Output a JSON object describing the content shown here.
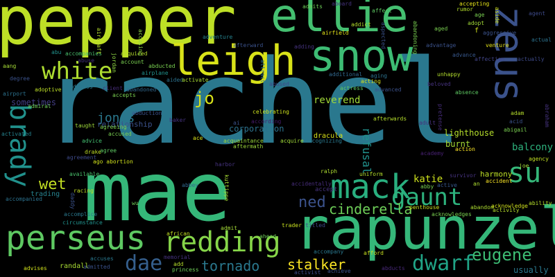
{
  "words": [
    {
      "text": "rachel",
      "color": "#2a788e"
    },
    {
      "text": "mae",
      "color": "#35b779"
    },
    {
      "text": "pepper",
      "color": "#bddf26"
    },
    {
      "text": "rapunzel",
      "color": "#35b779"
    },
    {
      "text": "ellie",
      "color": "#44bf70"
    },
    {
      "text": "snow",
      "color": "#3dbc74"
    },
    {
      "text": "zeus",
      "color": "#3b528b"
    },
    {
      "text": "leigh",
      "color": "#d8e219"
    },
    {
      "text": "mack",
      "color": "#29af7f"
    },
    {
      "text": "perseus",
      "color": "#5ec962"
    },
    {
      "text": "redding",
      "color": "#86d549"
    },
    {
      "text": "brady",
      "color": "#21918c"
    },
    {
      "text": "gaunt",
      "color": "#2db27d"
    },
    {
      "text": "white",
      "color": "#addc30"
    },
    {
      "text": "su",
      "color": "#35b779"
    },
    {
      "text": "eugene",
      "color": "#3dbc74"
    },
    {
      "text": "dwarf",
      "color": "#20a486"
    },
    {
      "text": "dae",
      "color": "#355f8d"
    },
    {
      "text": "tornado",
      "color": "#2a788e"
    },
    {
      "text": "cinderella",
      "color": "#6ece58"
    },
    {
      "text": "ned",
      "color": "#3b528b"
    },
    {
      "text": "jo",
      "color": "#d8e219"
    },
    {
      "text": "wet",
      "color": "#c2df23"
    },
    {
      "text": "stalker",
      "color": "#fde725"
    },
    {
      "text": "jonas",
      "color": "#2a788e"
    },
    {
      "text": "katie",
      "color": "#cde11d"
    },
    {
      "text": "refusal",
      "color": "#21918c"
    },
    {
      "text": "balcony",
      "color": "#2db27d"
    },
    {
      "text": "lighthouse",
      "color": "#b5de2b"
    },
    {
      "text": "reverend",
      "color": "#a2da37"
    },
    {
      "text": "corporation",
      "color": "#2c728e"
    },
    {
      "text": "harmony",
      "color": "#bddf26"
    },
    {
      "text": "burnt",
      "color": "#a5db36"
    },
    {
      "text": "sometimes",
      "color": "#433e85"
    },
    {
      "text": "dracula",
      "color": "#d8e219"
    },
    {
      "text": "relationship",
      "color": "#3b528b"
    },
    {
      "text": "usually",
      "color": "#2a788e"
    },
    {
      "text": "randall",
      "color": "#a8db34"
    },
    {
      "text": "trading",
      "color": "#26828e"
    },
    {
      "text": "accept",
      "color": "#46327e"
    },
    {
      "text": "abandon",
      "color": "#addc30"
    },
    {
      "text": "action",
      "color": "#fde725"
    },
    {
      "text": "activated",
      "color": "#26828e"
    },
    {
      "text": "admiral",
      "color": "#6ece58"
    },
    {
      "text": "adoptive",
      "color": "#bddf26"
    },
    {
      "text": "airport",
      "color": "#2c728e"
    },
    {
      "text": "degree",
      "color": "#3b528b"
    },
    {
      "text": "address",
      "color": "#2a788e"
    },
    {
      "text": "client",
      "color": "#472d7b"
    },
    {
      "text": "abandoned",
      "color": "#31688e"
    },
    {
      "text": "accepts",
      "color": "#7ad151"
    },
    {
      "text": "abduction",
      "color": "#3b528b"
    },
    {
      "text": "taught",
      "color": "#9fda3a"
    },
    {
      "text": "agreeing",
      "color": "#7fd34e"
    },
    {
      "text": "accused",
      "color": "#7ad151"
    },
    {
      "text": "agreement",
      "color": "#3e4a89"
    },
    {
      "text": "drake",
      "color": "#c0df25"
    },
    {
      "text": "agree",
      "color": "#5ec962"
    },
    {
      "text": "ago abortion",
      "color": "#d0e11c"
    },
    {
      "text": "available",
      "color": "#4ac16d"
    },
    {
      "text": "racing",
      "color": "#c2df23"
    },
    {
      "text": "abbey",
      "color": "#31688e"
    },
    {
      "text": "celebrating",
      "color": "#cde11d"
    },
    {
      "text": "according",
      "color": "#481b6d"
    },
    {
      "text": "acquaintance",
      "color": "#9bd93c"
    },
    {
      "text": "aftermath",
      "color": "#9dd93b"
    },
    {
      "text": "acquire",
      "color": "#a0da39"
    },
    {
      "text": "recognizing",
      "color": "#2a788e"
    },
    {
      "text": "afterwards",
      "color": "#b5de2b"
    },
    {
      "text": "adult",
      "color": "#46327e"
    },
    {
      "text": "academy",
      "color": "#482173"
    },
    {
      "text": "acting",
      "color": "#d8e219"
    },
    {
      "text": "actress",
      "color": "#5ec962"
    },
    {
      "text": "additional",
      "color": "#31688e"
    },
    {
      "text": "advanced",
      "color": "#3b528b"
    },
    {
      "text": "abused",
      "color": "#3e4a89"
    },
    {
      "text": "aging",
      "color": "#2c728e"
    },
    {
      "text": "unhappy",
      "color": "#b2dd2d"
    },
    {
      "text": "beloved",
      "color": "#46337f"
    },
    {
      "text": "absence",
      "color": "#5ec962"
    },
    {
      "text": "advance",
      "color": "#38588c"
    },
    {
      "text": "affection",
      "color": "#414487"
    },
    {
      "text": "advantage",
      "color": "#3b528b"
    },
    {
      "text": "venture",
      "color": "#e5e419"
    },
    {
      "text": "actually",
      "color": "#3e4a89"
    },
    {
      "text": "actual",
      "color": "#2c728e"
    },
    {
      "text": "agency",
      "color": "#c2df23"
    },
    {
      "text": "ability",
      "color": "#b5de2b"
    },
    {
      "text": "activity",
      "color": "#b5de2b"
    },
    {
      "text": "accident",
      "color": "#fde725"
    },
    {
      "text": "acknowledges",
      "color": "#7ad151"
    },
    {
      "text": "acknowledge",
      "color": "#d0e11c"
    },
    {
      "text": "penthouse",
      "color": "#c8e020"
    },
    {
      "text": "survivor",
      "color": "#46337f"
    },
    {
      "text": "uniform",
      "color": "#b5de2b"
    },
    {
      "text": "ralph",
      "color": "#addc30"
    },
    {
      "text": "accidentally",
      "color": "#472d7b"
    },
    {
      "text": "trader",
      "color": "#c8e020"
    },
    {
      "text": "titled",
      "color": "#3e4a89"
    },
    {
      "text": "accompany",
      "color": "#2a788e"
    },
    {
      "text": "afford",
      "color": "#c8e020"
    },
    {
      "text": "abducts",
      "color": "#482878"
    },
    {
      "text": "achieve",
      "color": "#3b528b"
    },
    {
      "text": "activist",
      "color": "#3e4a89"
    },
    {
      "text": "ahead",
      "color": "#6ece58"
    },
    {
      "text": "admit",
      "color": "#a5db36"
    },
    {
      "text": "memorial",
      "color": "#46337f"
    },
    {
      "text": "princess",
      "color": "#6ece58"
    },
    {
      "text": "add",
      "color": "#b5de2b"
    },
    {
      "text": "african",
      "color": "#c2df23"
    },
    {
      "text": "accuses",
      "color": "#2a788e"
    },
    {
      "text": "admitted",
      "color": "#3b528b"
    },
    {
      "text": "advises",
      "color": "#d0e11c"
    },
    {
      "text": "advice",
      "color": "#44bf70"
    },
    {
      "text": "accomplice",
      "color": "#2a788e"
    },
    {
      "text": "circumstance",
      "color": "#21918c"
    },
    {
      "text": "accompanied",
      "color": "#2c728e"
    },
    {
      "text": "abu",
      "color": "#21918c"
    },
    {
      "text": "accompanies",
      "color": "#4ac16d"
    },
    {
      "text": "acquired",
      "color": "#b5de2b"
    },
    {
      "text": "account",
      "color": "#7ad151"
    },
    {
      "text": "abducted",
      "color": "#7ad151"
    },
    {
      "text": "airplane",
      "color": "#21918c"
    },
    {
      "text": "aided",
      "color": "#2c728e"
    },
    {
      "text": "activate",
      "color": "#a8db34"
    },
    {
      "text": "afterward",
      "color": "#3b528b"
    },
    {
      "text": "adventure",
      "color": "#26828e"
    },
    {
      "text": "accusing",
      "color": "#8fd744"
    },
    {
      "text": "aircraft",
      "color": "#b5de2b"
    },
    {
      "text": "jordan",
      "color": "#8fd744"
    },
    {
      "text": "airfield",
      "color": "#e5e419"
    },
    {
      "text": "addict",
      "color": "#b5de2b"
    },
    {
      "text": "affect",
      "color": "#5ec962"
    },
    {
      "text": "abandoning",
      "color": "#7ad151"
    },
    {
      "text": "aspected",
      "color": "#3b528b"
    },
    {
      "text": "adopt",
      "color": "#a2da37"
    },
    {
      "text": "aggressive",
      "color": "#3b528b"
    },
    {
      "text": "accepting",
      "color": "#e5e419"
    },
    {
      "text": "aboard",
      "color": "#46337f"
    },
    {
      "text": "admits",
      "color": "#6ece58"
    },
    {
      "text": "rumor",
      "color": "#b5de2b"
    },
    {
      "text": "age",
      "color": "#7ad151"
    },
    {
      "text": "aside",
      "color": "#d0e11c"
    },
    {
      "text": "agent",
      "color": "#3e4a89"
    },
    {
      "text": "aged",
      "color": "#7ad151"
    },
    {
      "text": "adam",
      "color": "#b5de2b"
    },
    {
      "text": "acid",
      "color": "#3b528b"
    },
    {
      "text": "abigail",
      "color": "#7ad151"
    },
    {
      "text": "abraham",
      "color": "#46337f"
    },
    {
      "text": "pretense",
      "color": "#472d7b"
    },
    {
      "text": "aang",
      "color": "#a5db36"
    },
    {
      "text": "abuse",
      "color": "#46337f"
    },
    {
      "text": "ace",
      "color": "#d8e219"
    },
    {
      "text": "ai",
      "color": "#3b528b"
    },
    {
      "text": "kuttippe",
      "color": "#a8db34"
    },
    {
      "text": "harbor",
      "color": "#46337f"
    },
    {
      "text": "baker",
      "color": "#46337f"
    },
    {
      "text": "daddy",
      "color": "#3b528b"
    },
    {
      "text": "wu",
      "color": "#6ece58"
    },
    {
      "text": "attract",
      "color": "#2c728e"
    },
    {
      "text": "abby",
      "color": "#7ad151"
    },
    {
      "text": "active",
      "color": "#38588c"
    },
    {
      "text": "joe",
      "color": "#a5db36"
    },
    {
      "text": "an",
      "color": "#addc30"
    },
    {
      "text": "f",
      "color": "#d0e11c"
    },
    {
      "text": "adding",
      "color": "#46337f"
    }
  ]
}
